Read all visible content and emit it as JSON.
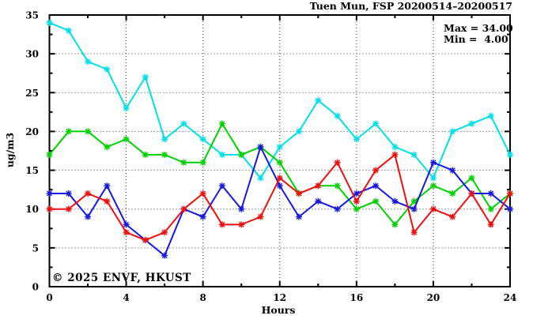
{
  "title": "Tuen Mun, FSP 20200514–20200517",
  "stats": {
    "max_label": "Max = 34.00",
    "min_label": "Min =  4.00"
  },
  "watermark": "© 2025 ENVF, HKUST",
  "watermark_color": "#d8d8d8",
  "chart_data": {
    "type": "line",
    "title": "Tuen Mun, FSP 20200514–20200517",
    "xlabel": "Hours",
    "ylabel": "ug/m3",
    "xlim": [
      0,
      24
    ],
    "ylim": [
      0,
      35
    ],
    "x_major_ticks": [
      0,
      4,
      8,
      12,
      16,
      20,
      24
    ],
    "x_minor_step": 2,
    "y_major_ticks": [
      0,
      5,
      10,
      15,
      20,
      25,
      30,
      35
    ],
    "y_minor_step": 2.5,
    "grid": "dotted-at-major-ticks",
    "legend_position": "none",
    "max": 34.0,
    "min": 4.0,
    "x": [
      0,
      1,
      2,
      3,
      4,
      5,
      6,
      7,
      8,
      9,
      10,
      11,
      12,
      13,
      14,
      15,
      16,
      17,
      18,
      19,
      20,
      21,
      22,
      23,
      24
    ],
    "series": [
      {
        "name": "cyan-series",
        "color": "#00dfe8",
        "values": [
          34,
          33,
          29,
          28,
          23,
          27,
          19,
          21,
          19,
          17,
          17,
          14,
          18,
          20,
          24,
          22,
          19,
          21,
          18,
          17,
          14,
          20,
          21,
          22,
          17
        ]
      },
      {
        "name": "green-series",
        "color": "#00cf00",
        "values": [
          17,
          20,
          20,
          18,
          19,
          17,
          17,
          16,
          16,
          21,
          17,
          18,
          16,
          12,
          13,
          13,
          10,
          11,
          8,
          11,
          13,
          12,
          14,
          10,
          12
        ]
      },
      {
        "name": "blue-series",
        "color": "#1717e0",
        "values": [
          12,
          12,
          9,
          13,
          8,
          6,
          4,
          10,
          9,
          13,
          10,
          18,
          13,
          9,
          11,
          10,
          12,
          13,
          11,
          10,
          16,
          15,
          12,
          12,
          10
        ]
      },
      {
        "name": "red-series",
        "color": "#ee0e0e",
        "values": [
          10,
          10,
          12,
          11,
          7,
          6,
          7,
          10,
          12,
          8,
          8,
          9,
          14,
          12,
          13,
          16,
          11,
          15,
          17,
          7,
          10,
          9,
          12,
          8,
          12
        ]
      }
    ]
  }
}
